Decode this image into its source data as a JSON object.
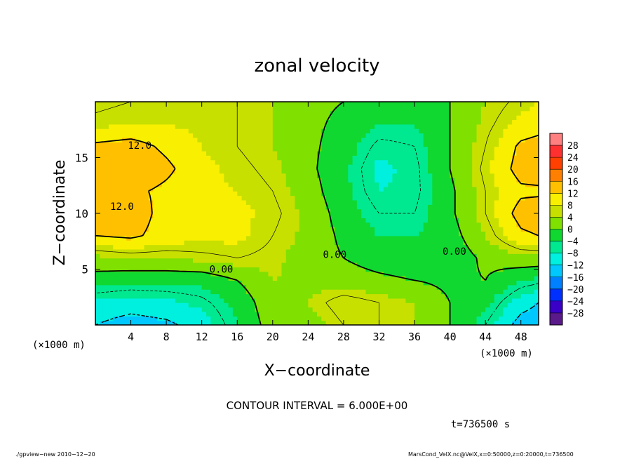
{
  "chart_data": {
    "type": "heatmap",
    "title": "zonal velocity",
    "xlabel": "X−coordinate",
    "ylabel": "Z−coordinate",
    "x_unit": "(×1000 m)",
    "y_unit": "(×1000 m)",
    "xlim": [
      0,
      50
    ],
    "ylim": [
      0,
      20
    ],
    "x_ticks": [
      4,
      8,
      12,
      16,
      20,
      24,
      28,
      32,
      36,
      40,
      44,
      48
    ],
    "y_ticks": [
      5,
      10,
      15
    ],
    "x_tick_labels": [
      "4",
      "8",
      "12",
      "16",
      "20",
      "24",
      "28",
      "32",
      "36",
      "40",
      "44",
      "48"
    ],
    "y_tick_labels": [
      "5",
      "10",
      "15"
    ],
    "contour_interval_text": "CONTOUR INTERVAL = 6.000E+00",
    "contour_labels": [
      {
        "text": "12.0",
        "x": 5.0,
        "z": 15.8
      },
      {
        "text": "12.0",
        "x": 3.0,
        "z": 10.3
      },
      {
        "text": "0.00",
        "x": 14.2,
        "z": 4.7
      },
      {
        "text": "0.00",
        "x": 27.0,
        "z": 6.0
      },
      {
        "text": "0.00",
        "x": 40.5,
        "z": 6.3
      }
    ],
    "colorbar": {
      "levels": [
        -28,
        -24,
        -20,
        -16,
        -12,
        -8,
        -4,
        0,
        4,
        8,
        12,
        16,
        20,
        24,
        28
      ],
      "labels": [
        "28",
        "24",
        "20",
        "16",
        "12",
        "8",
        "4",
        "0",
        "−4",
        "−8",
        "−12",
        "−16",
        "−20",
        "−24",
        "−28"
      ],
      "colors": [
        "#5a1a8a",
        "#3a00c8",
        "#0030ff",
        "#0080ff",
        "#00c8ff",
        "#00f0e0",
        "#00e890",
        "#10d830",
        "#80e000",
        "#c8e000",
        "#f8f000",
        "#ffc000",
        "#ff8000",
        "#ff4000",
        "#ff3030",
        "#ff8080"
      ]
    },
    "field_grid": {
      "x": [
        0,
        4,
        8,
        12,
        16,
        20,
        24,
        28,
        32,
        36,
        40,
        44,
        48,
        50
      ],
      "z": [
        0,
        2,
        4,
        6,
        8,
        10,
        12,
        14,
        16,
        18,
        20
      ],
      "values": [
        [
          -12,
          -14,
          -13,
          -10,
          -4,
          2,
          2,
          6,
          6,
          4,
          0,
          -6,
          -14,
          -15
        ],
        [
          -9,
          -10,
          -9,
          -7,
          -3,
          3,
          4,
          8,
          6,
          4,
          0,
          -3,
          -10,
          -12
        ],
        [
          -2,
          -3,
          -3,
          -3,
          0,
          4,
          3,
          2,
          1,
          0,
          -1,
          0,
          -4,
          -5
        ],
        [
          3,
          4,
          4,
          5,
          6,
          5,
          2,
          0,
          -2,
          -3,
          -3,
          1,
          3,
          3
        ],
        [
          12,
          13,
          10,
          9,
          9,
          6,
          3,
          -1,
          -4,
          -4,
          -2,
          4,
          11,
          12
        ],
        [
          15,
          15,
          10,
          8,
          9,
          7,
          3,
          -2,
          -6,
          -6,
          -1,
          6,
          14,
          15
        ],
        [
          13,
          13,
          11,
          9,
          8,
          6,
          2,
          -3,
          -8,
          -7,
          -1,
          6,
          11,
          11
        ],
        [
          15,
          16,
          13,
          9,
          7,
          5,
          1,
          -3,
          -9,
          -7,
          0,
          7,
          14,
          15
        ],
        [
          13,
          14,
          11,
          8,
          6,
          4,
          1,
          -2,
          -7,
          -6,
          0,
          6,
          13,
          14
        ],
        [
          7,
          8,
          8,
          7,
          6,
          4,
          1,
          -1,
          -4,
          -4,
          0,
          5,
          9,
          10
        ],
        [
          5,
          6,
          7,
          6,
          6,
          4,
          1,
          0,
          -3,
          -3,
          0,
          4,
          7,
          8
        ]
      ]
    },
    "time_text": "t=736500 s"
  },
  "footer": {
    "left": "./gpview−new   2010−12−20",
    "right": "MarsCond_VelX.nc@VelX,x=0:50000,z=0:20000,t=736500"
  }
}
